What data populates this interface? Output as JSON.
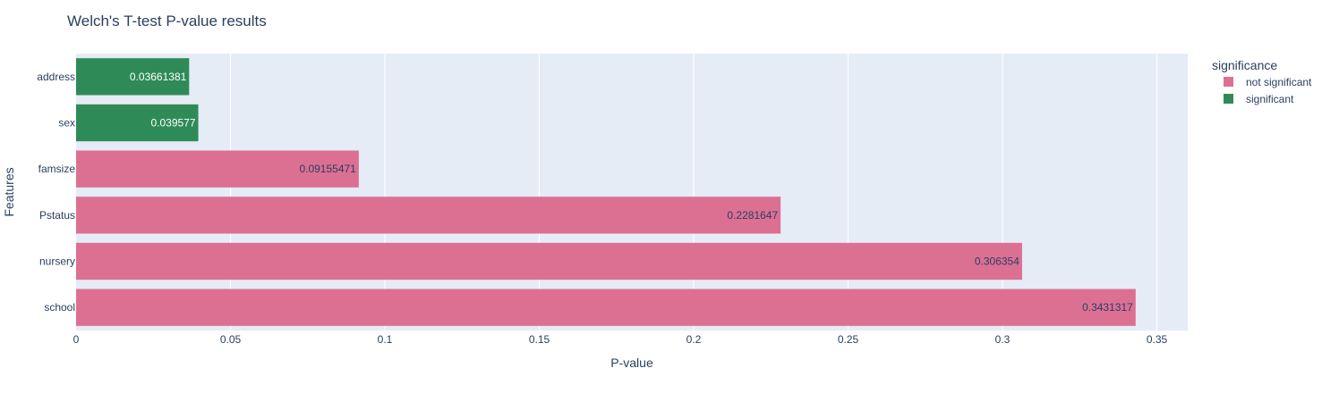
{
  "chart_data": {
    "type": "bar",
    "orientation": "horizontal",
    "title": "Welch's T-test P-value results",
    "xlabel": "P-value",
    "ylabel": "Features",
    "xlim": [
      0,
      0.36
    ],
    "x_ticks": [
      0,
      0.05,
      0.1,
      0.15,
      0.2,
      0.25,
      0.3,
      0.35
    ],
    "x_tick_labels": [
      "0",
      "0.05",
      "0.1",
      "0.15",
      "0.2",
      "0.25",
      "0.3",
      "0.35"
    ],
    "grid": true,
    "legend_title": "significance",
    "legend_position": "right",
    "series": [
      {
        "name": "not significant",
        "color": "#dc7093"
      },
      {
        "name": "significant",
        "color": "#2e8b57"
      }
    ],
    "bars": [
      {
        "category": "address",
        "value": 0.03661381,
        "label": "0.03661381",
        "group": "significant"
      },
      {
        "category": "sex",
        "value": 0.039577,
        "label": "0.039577",
        "group": "significant"
      },
      {
        "category": "famsize",
        "value": 0.09155471,
        "label": "0.09155471",
        "group": "not significant"
      },
      {
        "category": "Pstatus",
        "value": 0.2281647,
        "label": "0.2281647",
        "group": "not significant"
      },
      {
        "category": "nursery",
        "value": 0.306354,
        "label": "0.306354",
        "group": "not significant"
      },
      {
        "category": "school",
        "value": 0.3431317,
        "label": "0.3431317",
        "group": "not significant"
      }
    ]
  },
  "colors": {
    "plot_background": "#e5ecf6",
    "grid": "#ffffff",
    "text": "#2a3f5f",
    "label_on_green": "#ffffff",
    "label_on_pink": "#2a3f5f"
  }
}
